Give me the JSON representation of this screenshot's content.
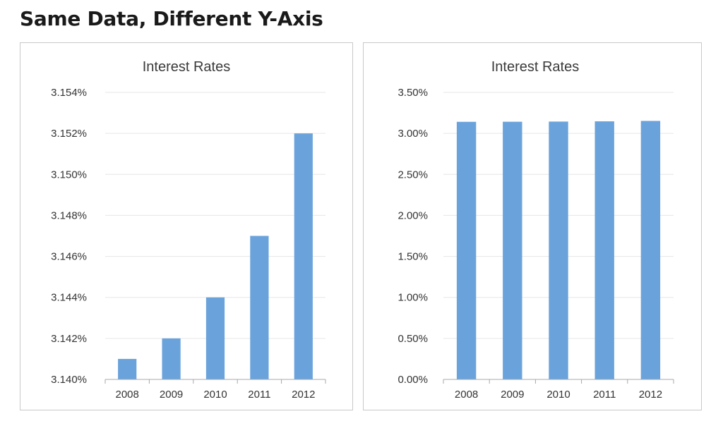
{
  "page": {
    "title": "Same Data, Different Y-Axis"
  },
  "colors": {
    "bar": "#6aa3db"
  },
  "chart_data": [
    {
      "type": "bar",
      "title": "Interest Rates",
      "xlabel": "",
      "ylabel": "",
      "categories": [
        "2008",
        "2009",
        "2010",
        "2011",
        "2012"
      ],
      "values": [
        3.141,
        3.142,
        3.144,
        3.147,
        3.152
      ],
      "ylim": [
        3.14,
        3.154
      ],
      "yticks": [
        3.14,
        3.142,
        3.144,
        3.146,
        3.148,
        3.15,
        3.152,
        3.154
      ],
      "ytick_labels": [
        "3.140%",
        "3.142%",
        "3.144%",
        "3.146%",
        "3.148%",
        "3.150%",
        "3.152%",
        "3.154%"
      ],
      "grid": true,
      "legend": "none"
    },
    {
      "type": "bar",
      "title": "Interest Rates",
      "xlabel": "",
      "ylabel": "",
      "categories": [
        "2008",
        "2009",
        "2010",
        "2011",
        "2012"
      ],
      "values": [
        3.141,
        3.142,
        3.144,
        3.147,
        3.152
      ],
      "ylim": [
        0,
        3.5
      ],
      "yticks": [
        0,
        0.5,
        1.0,
        1.5,
        2.0,
        2.5,
        3.0,
        3.5
      ],
      "ytick_labels": [
        "0.00%",
        "0.50%",
        "1.00%",
        "1.50%",
        "2.00%",
        "2.50%",
        "3.00%",
        "3.50%"
      ],
      "grid": true,
      "legend": "none"
    }
  ]
}
